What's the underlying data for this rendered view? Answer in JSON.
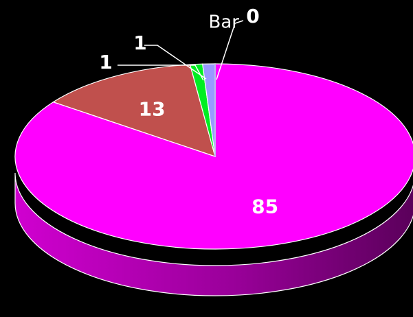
{
  "chart_data": {
    "type": "pie",
    "title": "",
    "legend": "none",
    "style": "3d",
    "background": "#000000",
    "slices": [
      {
        "value": 85,
        "label": "85",
        "color": "#ff00ff"
      },
      {
        "value": 13,
        "label": "13",
        "color": "#c0504d"
      },
      {
        "value": 1,
        "label": "1",
        "color": "#00ee22"
      },
      {
        "value": 1,
        "label": "1",
        "color": "#9999ff"
      },
      {
        "value": 0,
        "label": "0",
        "color": "#bbbbee",
        "category": "Bar"
      }
    ]
  }
}
